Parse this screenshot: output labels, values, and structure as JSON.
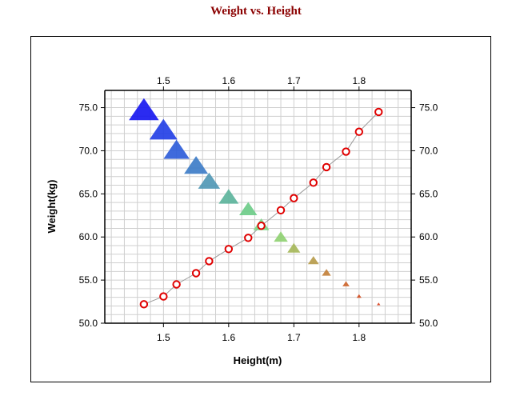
{
  "chart_data": {
    "type": "scatter",
    "title": "Weight vs. Height",
    "xlabel": "Height(m)",
    "ylabel": "Weight(kg)",
    "xlim": [
      1.41,
      1.88
    ],
    "ylim": [
      50.0,
      77.0
    ],
    "x_ticks": [
      "1.5",
      "1.6",
      "1.7",
      "1.8"
    ],
    "y_ticks": [
      "50.0",
      "55.0",
      "60.0",
      "65.0",
      "70.0",
      "75.0"
    ],
    "x_tick_values": [
      1.5,
      1.6,
      1.7,
      1.8
    ],
    "y_tick_values": [
      50,
      55,
      60,
      65,
      70,
      75
    ],
    "grid": true,
    "mirrored_axes": true,
    "series": [
      {
        "marker": "circle",
        "color": "#e00000",
        "line_color": "#9a9a9a",
        "points": [
          {
            "x": 1.47,
            "y": 52.2
          },
          {
            "x": 1.5,
            "y": 53.1
          },
          {
            "x": 1.52,
            "y": 54.5
          },
          {
            "x": 1.55,
            "y": 55.8
          },
          {
            "x": 1.57,
            "y": 57.2
          },
          {
            "x": 1.6,
            "y": 58.6
          },
          {
            "x": 1.63,
            "y": 59.9
          },
          {
            "x": 1.65,
            "y": 61.3
          },
          {
            "x": 1.68,
            "y": 63.1
          },
          {
            "x": 1.7,
            "y": 64.5
          },
          {
            "x": 1.73,
            "y": 66.3
          },
          {
            "x": 1.75,
            "y": 68.1
          },
          {
            "x": 1.78,
            "y": 69.9
          },
          {
            "x": 1.8,
            "y": 72.2
          },
          {
            "x": 1.83,
            "y": 74.5
          }
        ]
      },
      {
        "marker": "triangle",
        "points": [
          {
            "x": 1.47,
            "y": 74.5,
            "color": "#1414f0",
            "size": 15
          },
          {
            "x": 1.5,
            "y": 72.2,
            "color": "#1f3ce6",
            "size": 14
          },
          {
            "x": 1.52,
            "y": 69.9,
            "color": "#2a5ad8",
            "size": 13
          },
          {
            "x": 1.55,
            "y": 68.1,
            "color": "#3a7ac6",
            "size": 12
          },
          {
            "x": 1.57,
            "y": 66.3,
            "color": "#4e96b4",
            "size": 11
          },
          {
            "x": 1.6,
            "y": 64.5,
            "color": "#5ab29a",
            "size": 10
          },
          {
            "x": 1.63,
            "y": 63.1,
            "color": "#6acb86",
            "size": 9
          },
          {
            "x": 1.65,
            "y": 61.3,
            "color": "#7ad884",
            "size": 8
          },
          {
            "x": 1.68,
            "y": 59.9,
            "color": "#8ed070",
            "size": 7
          },
          {
            "x": 1.7,
            "y": 58.6,
            "color": "#a4b656",
            "size": 6.5
          },
          {
            "x": 1.73,
            "y": 57.2,
            "color": "#b69a48",
            "size": 5.5
          },
          {
            "x": 1.75,
            "y": 55.8,
            "color": "#c27e36",
            "size": 4.5
          },
          {
            "x": 1.78,
            "y": 54.5,
            "color": "#cc6228",
            "size": 3.5
          },
          {
            "x": 1.8,
            "y": 53.1,
            "color": "#d24a1c",
            "size": 2.5
          },
          {
            "x": 1.83,
            "y": 52.2,
            "color": "#d83a14",
            "size": 1.8
          }
        ]
      }
    ]
  }
}
